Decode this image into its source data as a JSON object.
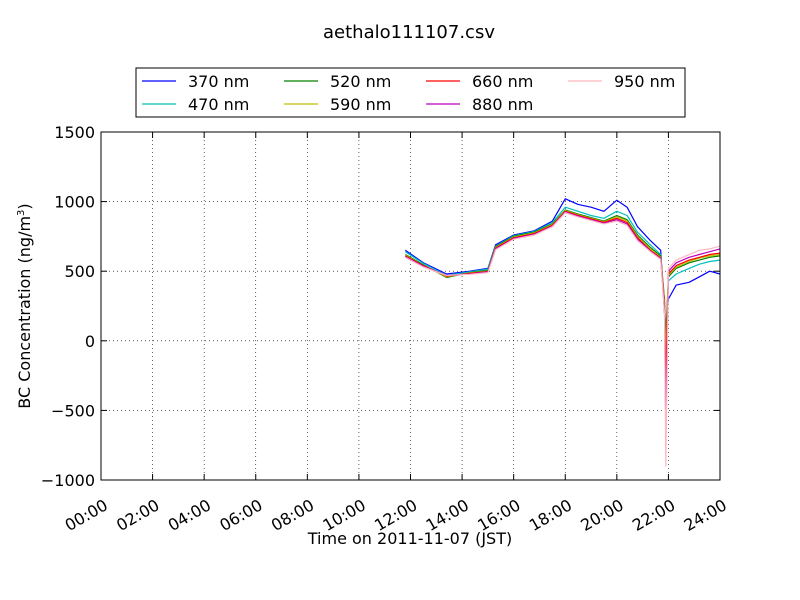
{
  "chart_data": {
    "type": "line",
    "title": "aethalo111107.csv",
    "xlabel": "Time on 2011-11-07 (JST)",
    "ylabel": "BC Concentration (ng/m³)",
    "ylabel_main": "BC Concentration (ng/m",
    "ylabel_sup": "3",
    "ylabel_end": ")",
    "xlim": [
      0,
      24
    ],
    "ylim": [
      -1000,
      1500
    ],
    "grid": true,
    "legend_position": "top",
    "x_ticks": [
      0,
      2,
      4,
      6,
      8,
      10,
      12,
      14,
      16,
      18,
      20,
      22,
      24
    ],
    "x_tick_labels": [
      "00:00",
      "02:00",
      "04:00",
      "06:00",
      "08:00",
      "10:00",
      "12:00",
      "14:00",
      "16:00",
      "18:00",
      "20:00",
      "22:00",
      "24:00"
    ],
    "y_ticks": [
      -1000,
      -500,
      0,
      500,
      1000,
      1500
    ],
    "y_tick_labels": [
      "−1000",
      "−500",
      "0",
      "500",
      "1000",
      "1500"
    ],
    "series": [
      {
        "name": "370 nm",
        "color": "#0000ff",
        "points": [
          [
            11.8,
            650
          ],
          [
            12.5,
            560
          ],
          [
            13.4,
            480
          ],
          [
            14.3,
            500
          ],
          [
            15.0,
            520
          ],
          [
            15.3,
            690
          ],
          [
            16.0,
            760
          ],
          [
            16.8,
            790
          ],
          [
            17.5,
            860
          ],
          [
            18.0,
            1020
          ],
          [
            18.5,
            980
          ],
          [
            19.0,
            960
          ],
          [
            19.5,
            930
          ],
          [
            20.0,
            1010
          ],
          [
            20.4,
            960
          ],
          [
            20.8,
            820
          ],
          [
            21.3,
            720
          ],
          [
            21.7,
            650
          ],
          [
            21.85,
            200
          ],
          [
            21.9,
            100
          ],
          [
            22.0,
            300
          ],
          [
            22.3,
            400
          ],
          [
            22.8,
            420
          ],
          [
            23.2,
            460
          ],
          [
            23.6,
            500
          ],
          [
            24.0,
            480
          ]
        ]
      },
      {
        "name": "470 nm",
        "color": "#00bfbf",
        "points": [
          [
            11.8,
            640
          ],
          [
            12.5,
            555
          ],
          [
            13.4,
            470
          ],
          [
            14.3,
            495
          ],
          [
            15.0,
            515
          ],
          [
            15.3,
            680
          ],
          [
            16.0,
            755
          ],
          [
            16.8,
            785
          ],
          [
            17.5,
            850
          ],
          [
            18.0,
            960
          ],
          [
            18.5,
            930
          ],
          [
            19.0,
            900
          ],
          [
            19.5,
            880
          ],
          [
            20.0,
            930
          ],
          [
            20.4,
            900
          ],
          [
            20.8,
            780
          ],
          [
            21.3,
            690
          ],
          [
            21.7,
            620
          ],
          [
            21.85,
            250
          ],
          [
            21.9,
            50
          ],
          [
            22.0,
            430
          ],
          [
            22.3,
            480
          ],
          [
            22.8,
            520
          ],
          [
            23.2,
            550
          ],
          [
            23.6,
            570
          ],
          [
            24.0,
            580
          ]
        ]
      },
      {
        "name": "520 nm",
        "color": "#008000",
        "points": [
          [
            11.8,
            620
          ],
          [
            12.5,
            545
          ],
          [
            13.4,
            455
          ],
          [
            14.3,
            490
          ],
          [
            15.0,
            505
          ],
          [
            15.3,
            675
          ],
          [
            16.0,
            750
          ],
          [
            16.8,
            780
          ],
          [
            17.5,
            840
          ],
          [
            18.0,
            940
          ],
          [
            18.5,
            910
          ],
          [
            19.0,
            885
          ],
          [
            19.5,
            860
          ],
          [
            20.0,
            900
          ],
          [
            20.4,
            870
          ],
          [
            20.8,
            760
          ],
          [
            21.3,
            670
          ],
          [
            21.7,
            610
          ],
          [
            21.85,
            300
          ],
          [
            21.9,
            0
          ],
          [
            22.0,
            460
          ],
          [
            22.3,
            520
          ],
          [
            22.8,
            560
          ],
          [
            23.2,
            580
          ],
          [
            23.6,
            600
          ],
          [
            24.0,
            610
          ]
        ]
      },
      {
        "name": "590 nm",
        "color": "#bfbf00",
        "points": [
          [
            11.8,
            615
          ],
          [
            12.5,
            540
          ],
          [
            13.4,
            460
          ],
          [
            14.3,
            488
          ],
          [
            15.0,
            500
          ],
          [
            15.3,
            670
          ],
          [
            16.0,
            745
          ],
          [
            16.8,
            775
          ],
          [
            17.5,
            835
          ],
          [
            18.0,
            935
          ],
          [
            18.5,
            905
          ],
          [
            19.0,
            880
          ],
          [
            19.5,
            855
          ],
          [
            20.0,
            890
          ],
          [
            20.4,
            860
          ],
          [
            20.8,
            750
          ],
          [
            21.3,
            660
          ],
          [
            21.7,
            600
          ],
          [
            21.85,
            280
          ],
          [
            21.9,
            -100
          ],
          [
            22.0,
            470
          ],
          [
            22.3,
            530
          ],
          [
            22.8,
            570
          ],
          [
            23.2,
            595
          ],
          [
            23.6,
            610
          ],
          [
            24.0,
            620
          ]
        ]
      },
      {
        "name": "660 nm",
        "color": "#ff0000",
        "points": [
          [
            11.8,
            610
          ],
          [
            12.5,
            540
          ],
          [
            13.4,
            465
          ],
          [
            14.3,
            485
          ],
          [
            15.0,
            498
          ],
          [
            15.3,
            665
          ],
          [
            16.0,
            740
          ],
          [
            16.8,
            770
          ],
          [
            17.5,
            830
          ],
          [
            18.0,
            930
          ],
          [
            18.5,
            900
          ],
          [
            19.0,
            875
          ],
          [
            19.5,
            850
          ],
          [
            20.0,
            880
          ],
          [
            20.4,
            850
          ],
          [
            20.8,
            740
          ],
          [
            21.3,
            650
          ],
          [
            21.7,
            595
          ],
          [
            21.85,
            250
          ],
          [
            21.9,
            -300
          ],
          [
            22.0,
            480
          ],
          [
            22.3,
            540
          ],
          [
            22.8,
            580
          ],
          [
            23.2,
            600
          ],
          [
            23.6,
            620
          ],
          [
            24.0,
            630
          ]
        ]
      },
      {
        "name": "880 nm",
        "color": "#bf00bf",
        "points": [
          [
            11.8,
            605
          ],
          [
            12.5,
            535
          ],
          [
            13.4,
            470
          ],
          [
            14.3,
            480
          ],
          [
            15.0,
            495
          ],
          [
            15.3,
            660
          ],
          [
            16.0,
            735
          ],
          [
            16.8,
            765
          ],
          [
            17.5,
            825
          ],
          [
            18.0,
            925
          ],
          [
            18.5,
            895
          ],
          [
            19.0,
            870
          ],
          [
            19.5,
            845
          ],
          [
            20.0,
            870
          ],
          [
            20.4,
            840
          ],
          [
            20.8,
            730
          ],
          [
            21.3,
            645
          ],
          [
            21.7,
            590
          ],
          [
            21.85,
            220
          ],
          [
            21.9,
            -650
          ],
          [
            22.0,
            500
          ],
          [
            22.3,
            560
          ],
          [
            22.8,
            600
          ],
          [
            23.2,
            620
          ],
          [
            23.6,
            640
          ],
          [
            24.0,
            660
          ]
        ]
      },
      {
        "name": "950 nm",
        "color": "#ffb6c1",
        "points": [
          [
            11.8,
            600
          ],
          [
            12.5,
            530
          ],
          [
            13.4,
            470
          ],
          [
            14.3,
            478
          ],
          [
            15.0,
            490
          ],
          [
            15.3,
            655
          ],
          [
            16.0,
            730
          ],
          [
            16.8,
            760
          ],
          [
            17.5,
            820
          ],
          [
            18.0,
            920
          ],
          [
            18.5,
            890
          ],
          [
            19.0,
            865
          ],
          [
            19.5,
            840
          ],
          [
            20.0,
            860
          ],
          [
            20.4,
            830
          ],
          [
            20.8,
            720
          ],
          [
            21.3,
            640
          ],
          [
            21.7,
            585
          ],
          [
            21.85,
            200
          ],
          [
            21.9,
            -900
          ],
          [
            22.0,
            520
          ],
          [
            22.3,
            580
          ],
          [
            22.8,
            620
          ],
          [
            23.2,
            650
          ],
          [
            23.6,
            660
          ],
          [
            24.0,
            680
          ]
        ]
      }
    ]
  }
}
